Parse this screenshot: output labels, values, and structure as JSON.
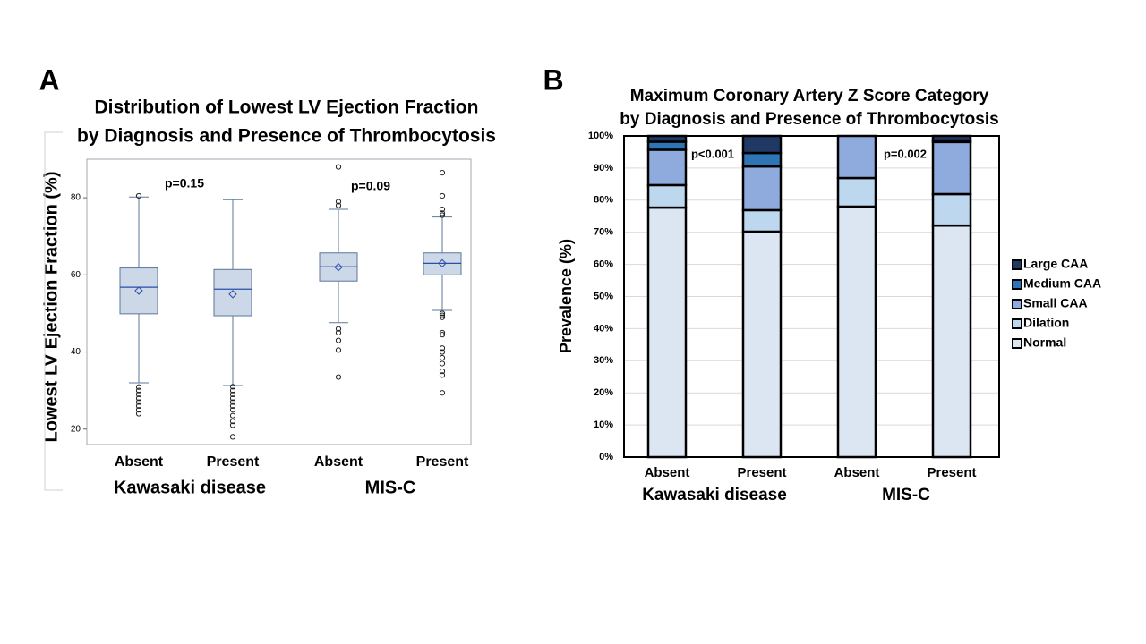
{
  "chart_data": [
    {
      "type": "box",
      "panel": "A",
      "title": [
        "Distribution of Lowest LV Ejection Fraction",
        "by Diagnosis and Presence of Thrombocytosis"
      ],
      "y_label": "Lowest LV Ejection Fraction (%)",
      "categories": [
        "Absent",
        "Present",
        "Absent",
        "Present"
      ],
      "groups": [
        "Kawasaki disease",
        "MIS-C"
      ],
      "annotations": [
        "p=0.15",
        "p=0.09"
      ],
      "color": "#ccd7e8",
      "line_color": "#5a7898",
      "mean_color": "#2a4fa8",
      "ylim": [
        16,
        90
      ],
      "yticks": [
        20,
        40,
        60,
        80
      ],
      "boxes": [
        {
          "min": 32,
          "q1": 49.9,
          "median": 56.8,
          "q3": 61.8,
          "max": 80.2,
          "mean": 55.9,
          "outliers": [
            80.5,
            30.9,
            30,
            29,
            28,
            27,
            26,
            25,
            24
          ]
        },
        {
          "min": 31.3,
          "q1": 49.4,
          "median": 56.3,
          "q3": 61.4,
          "max": 79.5,
          "mean": 55,
          "outliers": [
            31,
            30,
            29,
            28,
            27,
            26,
            25,
            23.5,
            22,
            21,
            18
          ]
        },
        {
          "min": 47.6,
          "q1": 58.4,
          "median": 62.1,
          "q3": 65.7,
          "max": 77,
          "mean": 62,
          "outliers": [
            88,
            79,
            78,
            46,
            45,
            43,
            40.5,
            33.5
          ]
        },
        {
          "min": 50.8,
          "q1": 60,
          "median": 63,
          "q3": 65.7,
          "max": 75,
          "mean": 63,
          "outliers": [
            86.5,
            80.5,
            77,
            76,
            75.5,
            50,
            49.5,
            49,
            45,
            44.5,
            41,
            40,
            38.5,
            37,
            35,
            34,
            29.4
          ]
        }
      ]
    },
    {
      "type": "stacked_bar",
      "panel": "B",
      "title": [
        "Maximum Coronary Artery Z Score Category",
        "by Diagnosis and Presence of Thrombocytosis"
      ],
      "y_label": "Prevalence (%)",
      "categories": [
        "Absent",
        "Present",
        "Absent",
        "Present"
      ],
      "groups": [
        "Kawasaki disease",
        "MIS-C"
      ],
      "annotations": [
        "p<0.001",
        "p=0.002"
      ],
      "ylim": [
        0,
        100
      ],
      "yticks": [
        {
          "value": 0,
          "label": "0%"
        },
        {
          "value": 10,
          "label": "10%"
        },
        {
          "value": 20,
          "label": "20%"
        },
        {
          "value": 30,
          "label": "30%"
        },
        {
          "value": 40,
          "label": "40%"
        },
        {
          "value": 50,
          "label": "50%"
        },
        {
          "value": 60,
          "label": "60%"
        },
        {
          "value": 70,
          "label": "70%"
        },
        {
          "value": 80,
          "label": "80%"
        },
        {
          "value": 90,
          "label": "90%"
        },
        {
          "value": 100,
          "label": "100%"
        }
      ],
      "grid": true,
      "series": [
        {
          "name": "Normal",
          "color": "#dce6f2",
          "values": [
            77.7,
            70.2,
            78,
            72.1
          ]
        },
        {
          "name": "Dilation",
          "color": "#bdd7ee",
          "values": [
            7,
            6.7,
            8.9,
            9.8
          ]
        },
        {
          "name": "Small CAA",
          "color": "#8faadc",
          "values": [
            11,
            13.6,
            13.1,
            16.2
          ]
        },
        {
          "name": "Medium CAA",
          "color": "#2e75b6",
          "values": [
            2.5,
            4.2,
            0,
            0.5
          ]
        },
        {
          "name": "Large CAA",
          "color": "#1f3864",
          "values": [
            1.8,
            5.3,
            0,
            1.4
          ]
        }
      ]
    }
  ]
}
